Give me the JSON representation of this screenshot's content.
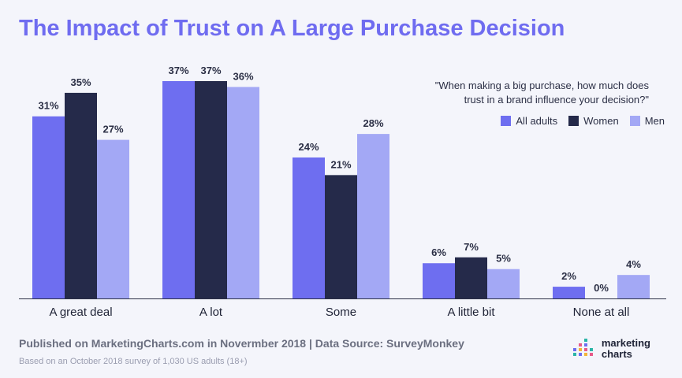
{
  "title": "The Impact of Trust on A Large Purchase Decision",
  "question_line1": "\"When making a big purchase, how much does",
  "question_line2": "trust in a brand influence your decision?\"",
  "footer_main": "Published on MarketingCharts.com in Novermber 2018 | Data Source: SurveyMonkey",
  "footer_sub": "Based on an October 2018 survey of 1,030 US adults (18+)",
  "logo": {
    "line1": "marketing",
    "line2": "charts"
  },
  "chart_data": {
    "type": "bar",
    "title": "The Impact of Trust on A Large Purchase Decision",
    "categories": [
      "A great deal",
      "A lot",
      "Some",
      "A little bit",
      "None at all"
    ],
    "series": [
      {
        "name": "All adults",
        "color": "#6e6ef0",
        "values": [
          31,
          37,
          24,
          6,
          2
        ]
      },
      {
        "name": "Women",
        "color": "#252a4a",
        "values": [
          35,
          37,
          21,
          7,
          0
        ]
      },
      {
        "name": "Men",
        "color": "#a3a8f5",
        "values": [
          27,
          36,
          28,
          5,
          4
        ]
      }
    ],
    "value_suffix": "%",
    "ylim": [
      0,
      37
    ],
    "grid": false,
    "legend_position": "top-right"
  }
}
